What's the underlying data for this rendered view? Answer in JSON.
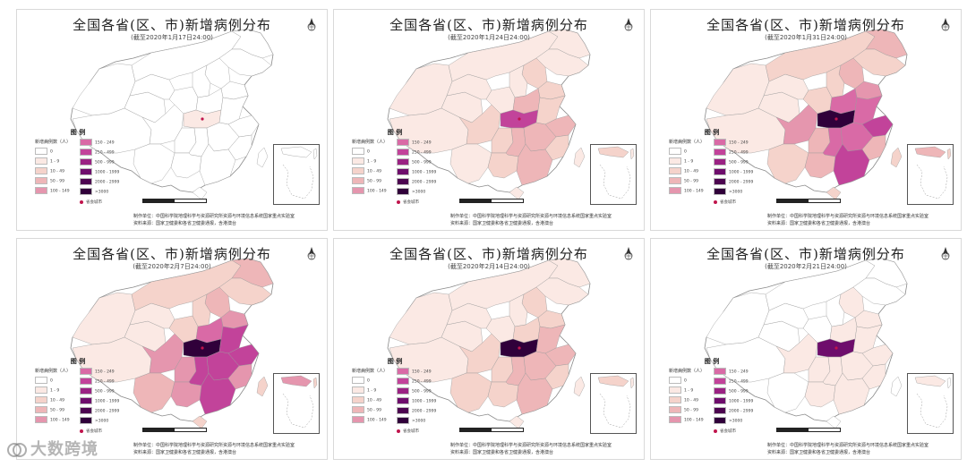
{
  "panels": [
    {
      "title": "全国各省(区、市)新增病例分布",
      "date": "(截至2020年1月17日24:00)",
      "level": 0
    },
    {
      "title": "全国各省(区、市)新增病例分布",
      "date": "(截至2020年1月24日24:00)",
      "level": 1
    },
    {
      "title": "全国各省(区、市)新增病例分布",
      "date": "(截至2020年1月31日24:00)",
      "level": 3
    },
    {
      "title": "全国各省(区、市)新增病例分布",
      "date": "(截至2020年2月7日24:00)",
      "level": 4
    },
    {
      "title": "全国各省(区、市)新增病例分布",
      "date": "(截至2020年2月14日24:00)",
      "level": 2
    },
    {
      "title": "全国各省(区、市)新增病例分布",
      "date": "(截至2020年2月21日24:00)",
      "level": 1
    }
  ],
  "legend": {
    "title": "图 例",
    "unit": "新增病例数（人）",
    "left_items": [
      "0",
      "1 - 9",
      "10 - 49",
      "50 - 99",
      "100 - 149"
    ],
    "right_items": [
      "150 - 249",
      "250 - 499",
      "500 - 999",
      "1000 - 1999",
      "2000 - 2999",
      ">3000"
    ],
    "dot_label": "省会城市"
  },
  "credit_line1": "制作单位：中国科学院地理科学与资源研究所资源与环境信息系统国家重点实验室",
  "credit_line2": "资料来源：国家卫健委和各省卫健委通报，含港澳台",
  "watermark": "大数跨境",
  "colors": {
    "c0": "#ffffff",
    "c1": "#fbe9e4",
    "c2": "#f5d3cb",
    "c3": "#eeb6b8",
    "c4": "#e596ae",
    "c5": "#d96aa6",
    "c6": "#c2439a",
    "c7": "#9a2283",
    "c8": "#6e0d6c",
    "c9": "#4c0550",
    "c10": "#30003a"
  }
}
